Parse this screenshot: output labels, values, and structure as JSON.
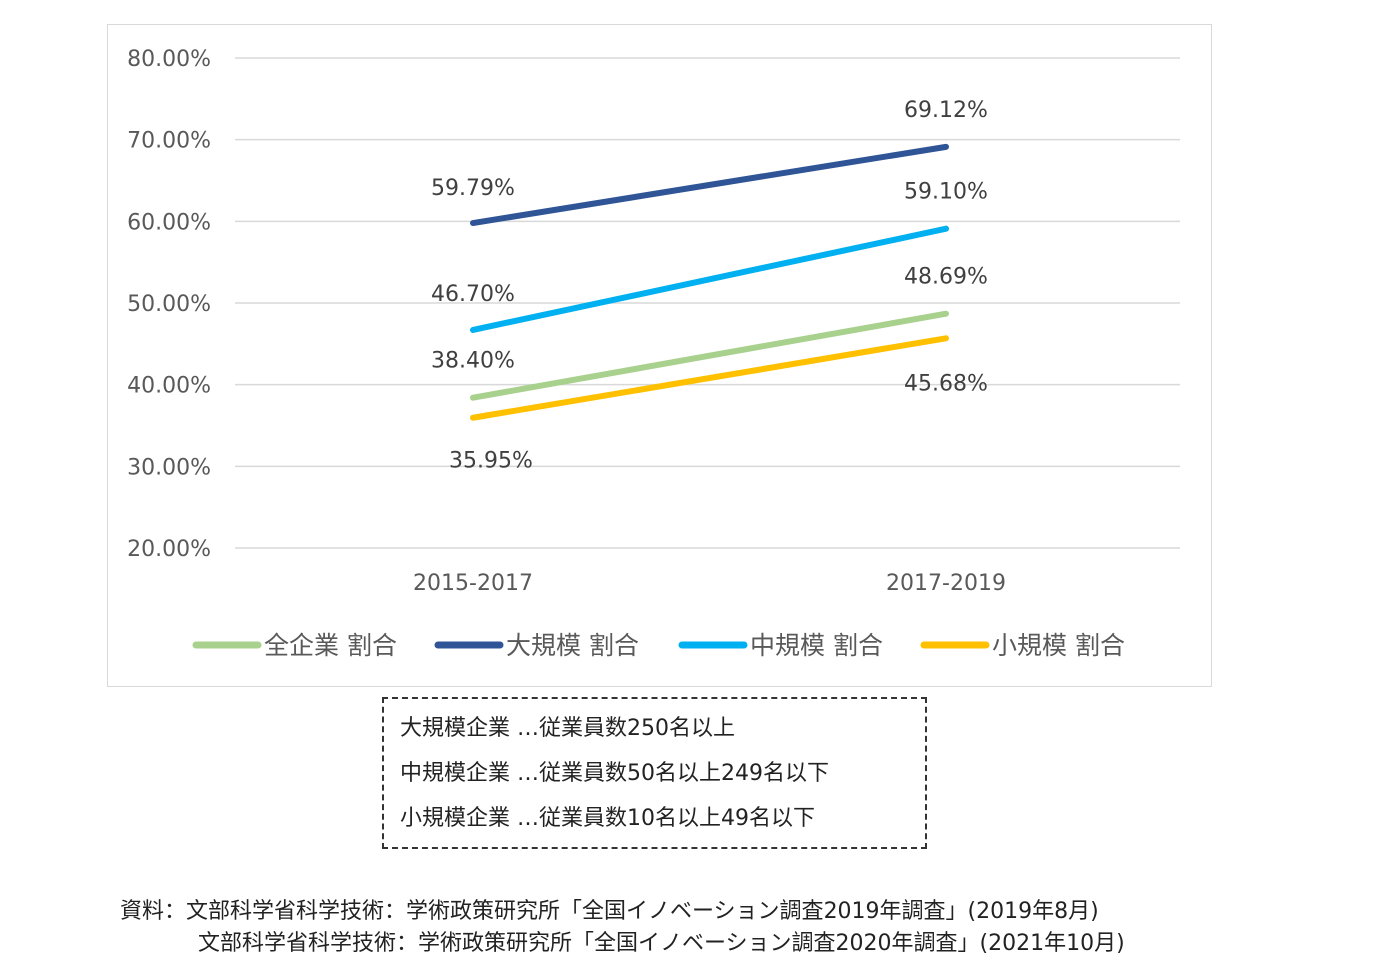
{
  "chart_data": {
    "type": "line",
    "categories": [
      "2015-2017",
      "2017-2019"
    ],
    "y_ticks": [
      "20.00%",
      "30.00%",
      "40.00%",
      "50.00%",
      "60.00%",
      "70.00%",
      "80.00%"
    ],
    "ylim": [
      20,
      80
    ],
    "grid": true,
    "legend_position": "bottom",
    "series": [
      {
        "name": "全企業 割合",
        "color": "#A9D18E",
        "values": [
          38.4,
          48.69
        ],
        "labels": [
          "38.40%",
          "48.69%"
        ]
      },
      {
        "name": "大規模 割合",
        "color": "#2F5597",
        "values": [
          59.79,
          69.12
        ],
        "labels": [
          "59.79%",
          "69.12%"
        ]
      },
      {
        "name": "中規模 割合",
        "color": "#00B0F0",
        "values": [
          46.7,
          59.1
        ],
        "labels": [
          "46.70%",
          "59.10%"
        ]
      },
      {
        "name": "小規模 割合",
        "color": "#FFC000",
        "values": [
          35.95,
          45.68
        ],
        "labels": [
          "35.95%",
          "45.68%"
        ]
      }
    ]
  },
  "note": {
    "lines": [
      "大規模企業 …従業員数250名以上",
      "中規模企業 …従業員数50名以上249名以下",
      "小規模企業 …従業員数10名以上49名以下"
    ]
  },
  "source": {
    "line1": "資料：文部科学省科学技術：学術政策研究所「全国イノベーション調査2019年調査」(2019年8月)",
    "line2": "文部科学省科学技術：学術政策研究所「全国イノベーション調査2020年調査」(2021年10月)"
  }
}
